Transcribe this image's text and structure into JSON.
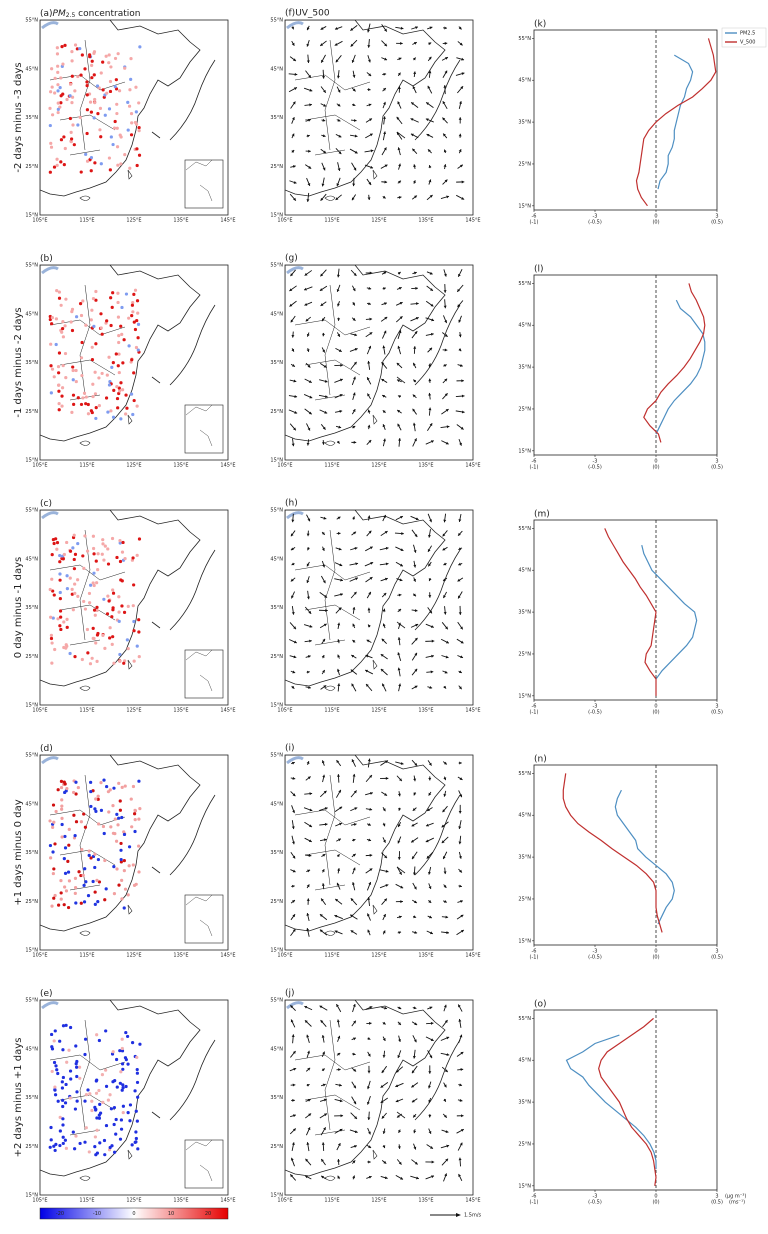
{
  "figure": {
    "row_labels": [
      "-2 days minus -3 days",
      "-1 days minus -2 days",
      "0 day minus -1 days",
      "+1 days minus 0 day",
      "+2 days minus +1 days"
    ],
    "map_titles": [
      "(a)",
      "(b)",
      "(c)",
      "(d)",
      "(e)"
    ],
    "map_var": {
      "name": "PM",
      "sub": "2.5",
      "rest": " concentration"
    },
    "wind_titles": [
      "(f)UV_500",
      "(g)",
      "(h)",
      "(i)",
      "(j)"
    ],
    "lat_labels": [
      "55°N",
      "45°N",
      "35°N",
      "25°N",
      "15°N"
    ],
    "lon_labels": [
      "105°E",
      "115°E",
      "125°E",
      "135°E",
      "145°E"
    ],
    "wind_key": "1.5m/s",
    "colorbar_ticks": [
      -20,
      -10,
      0,
      10,
      20
    ],
    "units": [
      "(μg m⁻³)",
      "(ms⁻¹)"
    ]
  },
  "chart_data": [
    {
      "type": "line",
      "title": "(k)",
      "y": [
        15,
        17,
        19,
        21,
        23,
        25,
        27,
        29,
        31,
        33,
        35,
        37,
        39,
        41,
        43,
        45,
        47,
        49,
        51,
        53,
        55
      ],
      "ylim": [
        14,
        57
      ],
      "yticks": [
        {
          "value": 15,
          "label": "15°N"
        },
        {
          "value": 25,
          "label": "25°N"
        },
        {
          "value": 35,
          "label": "35°N"
        },
        {
          "value": 45,
          "label": "45°N"
        },
        {
          "value": 55,
          "label": "55°N"
        }
      ],
      "xlim": [
        -6,
        3
      ],
      "xticks": [
        -6,
        -3,
        0,
        3
      ],
      "x2lim": [
        -1,
        0.5
      ],
      "x2ticks": [
        {
          "value": -1,
          "label": "(-1)"
        },
        {
          "value": -0.5,
          "label": "(-0.5)"
        },
        {
          "value": 0,
          "label": "(0)"
        },
        {
          "value": 0.5,
          "label": "(0.5)"
        }
      ],
      "series": [
        {
          "name": "PM2.5",
          "color": "#4e8fc2",
          "values": [
            null,
            null,
            0.1,
            0.2,
            0.5,
            0.6,
            0.6,
            0.8,
            0.9,
            0.9,
            1.0,
            1.1,
            1.2,
            1.4,
            1.5,
            1.7,
            1.8,
            1.6,
            0.9,
            null,
            null
          ]
        },
        {
          "name": "V_500",
          "color": "#c0302f",
          "axis": "x2",
          "values": [
            -0.07,
            -0.12,
            -0.15,
            -0.16,
            -0.14,
            -0.13,
            -0.12,
            -0.11,
            -0.1,
            -0.06,
            0.0,
            0.08,
            0.18,
            0.3,
            0.38,
            0.45,
            0.49,
            0.48,
            0.47,
            0.45,
            0.43
          ]
        }
      ]
    },
    {
      "type": "line",
      "title": "(l)",
      "y": [
        15,
        17,
        19,
        21,
        23,
        25,
        27,
        29,
        31,
        33,
        35,
        37,
        39,
        41,
        43,
        45,
        47,
        49,
        51,
        53,
        55
      ],
      "ylim": [
        14,
        57
      ],
      "yticks": [
        {
          "value": 15,
          "label": "15°N"
        },
        {
          "value": 25,
          "label": "25°N"
        },
        {
          "value": 35,
          "label": "35°N"
        },
        {
          "value": 45,
          "label": "45°N"
        },
        {
          "value": 55,
          "label": "55°N"
        }
      ],
      "xlim": [
        -6,
        3
      ],
      "xticks": [
        -6,
        -3,
        0,
        3
      ],
      "x2lim": [
        -1,
        0.5
      ],
      "x2ticks": [
        {
          "value": -1,
          "label": "(-1)"
        },
        {
          "value": -0.5,
          "label": "(-0.5)"
        },
        {
          "value": 0,
          "label": "(0)"
        },
        {
          "value": 0.5,
          "label": "(0.5)"
        }
      ],
      "series": [
        {
          "name": "PM2.5",
          "color": "#4e8fc2",
          "values": [
            null,
            null,
            0.0,
            0.2,
            0.4,
            0.6,
            0.9,
            1.3,
            1.7,
            2.0,
            2.2,
            2.3,
            2.4,
            2.4,
            2.3,
            2.0,
            1.7,
            1.2,
            1.0,
            null,
            null
          ]
        },
        {
          "name": "V_500",
          "color": "#c0302f",
          "axis": "x2",
          "values": [
            null,
            0.04,
            0.02,
            -0.05,
            -0.1,
            -0.07,
            0.0,
            0.04,
            0.1,
            0.17,
            0.23,
            0.28,
            0.32,
            0.36,
            0.39,
            0.4,
            0.39,
            0.36,
            0.33,
            0.29,
            0.27
          ]
        }
      ]
    },
    {
      "type": "line",
      "title": "(m)",
      "y": [
        15,
        17,
        19,
        21,
        23,
        25,
        27,
        29,
        31,
        33,
        35,
        37,
        39,
        41,
        43,
        45,
        47,
        49,
        51,
        53,
        55
      ],
      "ylim": [
        14,
        57
      ],
      "yticks": [
        {
          "value": 15,
          "label": "15°N"
        },
        {
          "value": 25,
          "label": "25°N"
        },
        {
          "value": 35,
          "label": "35°N"
        },
        {
          "value": 45,
          "label": "45°N"
        },
        {
          "value": 55,
          "label": "55°N"
        }
      ],
      "xlim": [
        -6,
        3
      ],
      "xticks": [
        -6,
        -3,
        0,
        3
      ],
      "x2lim": [
        -1,
        0.5
      ],
      "x2ticks": [
        {
          "value": -1,
          "label": "(-1)"
        },
        {
          "value": -0.5,
          "label": "(-0.5)"
        },
        {
          "value": 0,
          "label": "(0)"
        },
        {
          "value": 0.5,
          "label": "(0.5)"
        }
      ],
      "series": [
        {
          "name": "PM2.5",
          "color": "#4e8fc2",
          "values": [
            null,
            null,
            0.0,
            0.3,
            0.7,
            1.1,
            1.5,
            1.8,
            1.9,
            2.0,
            1.9,
            1.4,
            1.0,
            0.6,
            0.2,
            -0.2,
            -0.4,
            -0.6,
            -0.7,
            null,
            null
          ]
        },
        {
          "name": "V_500",
          "color": "#c0302f",
          "axis": "x2",
          "values": [
            0.0,
            0.0,
            0.0,
            -0.05,
            -0.09,
            -0.08,
            -0.04,
            -0.03,
            -0.02,
            -0.01,
            0.0,
            -0.04,
            -0.08,
            -0.13,
            -0.17,
            -0.22,
            -0.27,
            -0.31,
            -0.35,
            -0.39,
            -0.42
          ]
        }
      ]
    },
    {
      "type": "line",
      "title": "(n)",
      "y": [
        15,
        17,
        19,
        21,
        23,
        25,
        27,
        29,
        31,
        33,
        35,
        37,
        39,
        41,
        43,
        45,
        47,
        49,
        51,
        53,
        55
      ],
      "ylim": [
        14,
        57
      ],
      "yticks": [
        {
          "value": 15,
          "label": "15°N"
        },
        {
          "value": 25,
          "label": "25°N"
        },
        {
          "value": 35,
          "label": "35°N"
        },
        {
          "value": 45,
          "label": "45°N"
        },
        {
          "value": 55,
          "label": "55°N"
        }
      ],
      "xlim": [
        -6,
        3
      ],
      "xticks": [
        -6,
        -3,
        0,
        3
      ],
      "x2lim": [
        -1,
        0.5
      ],
      "x2ticks": [
        {
          "value": -1,
          "label": "(-1)"
        },
        {
          "value": -0.5,
          "label": "(-0.5)"
        },
        {
          "value": 0,
          "label": "(0)"
        },
        {
          "value": 0.5,
          "label": "(0.5)"
        }
      ],
      "series": [
        {
          "name": "PM2.5",
          "color": "#4e8fc2",
          "values": [
            null,
            null,
            0.1,
            0.3,
            0.5,
            0.8,
            0.9,
            0.8,
            0.5,
            0.0,
            -0.5,
            -0.9,
            -1.0,
            -1.3,
            -1.6,
            -1.9,
            -2.0,
            -1.9,
            -1.7,
            null,
            null
          ]
        },
        {
          "name": "V_500",
          "color": "#c0302f",
          "axis": "x2",
          "values": [
            null,
            0.05,
            0.03,
            0.01,
            0.0,
            0.0,
            0.0,
            -0.02,
            -0.08,
            -0.16,
            -0.26,
            -0.36,
            -0.45,
            -0.55,
            -0.64,
            -0.7,
            -0.74,
            -0.76,
            -0.76,
            -0.75,
            -0.74
          ]
        }
      ]
    },
    {
      "type": "line",
      "title": "(o)",
      "y": [
        15,
        17,
        19,
        21,
        23,
        25,
        27,
        29,
        31,
        33,
        35,
        37,
        39,
        41,
        43,
        45,
        47,
        49,
        51,
        53,
        55
      ],
      "ylim": [
        14,
        57
      ],
      "yticks": [
        {
          "value": 15,
          "label": "15°N"
        },
        {
          "value": 25,
          "label": "25°N"
        },
        {
          "value": 35,
          "label": "35°N"
        },
        {
          "value": 45,
          "label": "45°N"
        },
        {
          "value": 55,
          "label": "55°N"
        }
      ],
      "xlim": [
        -6,
        3
      ],
      "xticks": [
        -6,
        -3,
        0,
        3
      ],
      "x2lim": [
        -1,
        0.5
      ],
      "x2ticks": [
        {
          "value": -1,
          "label": "(-1)"
        },
        {
          "value": -0.5,
          "label": "(-0.5)"
        },
        {
          "value": 0,
          "label": "(0)"
        },
        {
          "value": 0.5,
          "label": "(0.5)"
        }
      ],
      "series": [
        {
          "name": "PM2.5",
          "color": "#4e8fc2",
          "values": [
            null,
            null,
            0.0,
            0.0,
            -0.1,
            -0.3,
            -0.6,
            -1.0,
            -1.5,
            -2.0,
            -2.5,
            -2.9,
            -3.3,
            -3.6,
            -4.2,
            -4.4,
            -3.6,
            -3.0,
            -1.8,
            null,
            null
          ]
        },
        {
          "name": "V_500",
          "color": "#c0302f",
          "axis": "x2",
          "values": [
            -0.01,
            0.0,
            -0.01,
            -0.02,
            -0.04,
            -0.08,
            -0.14,
            -0.2,
            -0.24,
            -0.27,
            -0.3,
            -0.35,
            -0.4,
            -0.45,
            -0.47,
            -0.45,
            -0.4,
            -0.3,
            -0.2,
            -0.1,
            -0.02
          ]
        }
      ]
    }
  ]
}
